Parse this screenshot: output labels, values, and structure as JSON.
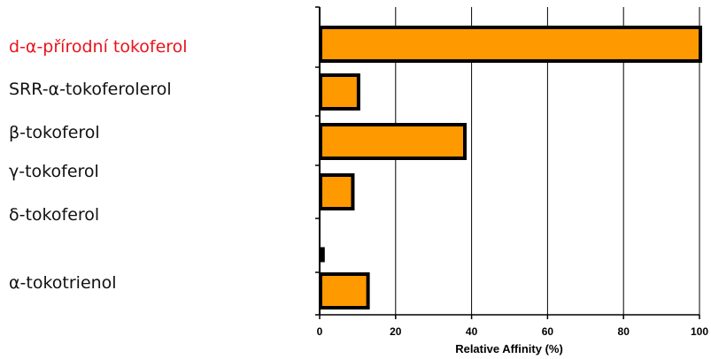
{
  "chart_data": {
    "type": "bar",
    "orientation": "horizontal",
    "categories": [
      "d-α-přírodní tokoferol",
      "SRR-α-tokoferolerol",
      "β-tokoferol",
      "γ-tokoferol",
      "δ-tokoferol",
      "α-tokotrienol"
    ],
    "highlighted_category": "d-α-přírodní tokoferol",
    "values": [
      100,
      10,
      38,
      8.5,
      1,
      12.5
    ],
    "title": "",
    "xlabel": "Relative Affinity (%)",
    "ylabel": "",
    "xlim": [
      0,
      100
    ],
    "x_ticks": [
      0,
      20,
      40,
      60,
      80,
      100
    ],
    "grid": "vertical",
    "legend": "none"
  },
  "colors": {
    "bar_fill": "#ff9900",
    "bar_stroke": "#000000",
    "highlight_label": "#e8141b",
    "label_text": "#111111",
    "grid": "#000000"
  }
}
